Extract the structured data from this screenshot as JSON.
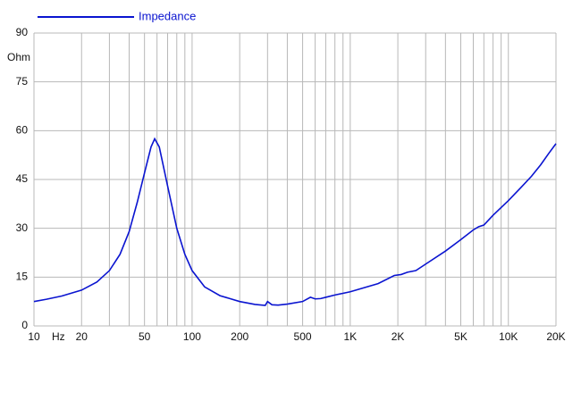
{
  "chart_data": {
    "type": "line",
    "y_unit": "Ohm",
    "x_unit": "Hz",
    "x": [
      10,
      12,
      15,
      20,
      25,
      30,
      35,
      40,
      45,
      50,
      55,
      58,
      62,
      70,
      80,
      90,
      100,
      120,
      150,
      200,
      250,
      290,
      300,
      320,
      350,
      400,
      500,
      560,
      600,
      650,
      700,
      800,
      1000,
      1500,
      1900,
      2100,
      2300,
      2600,
      3000,
      4000,
      5000,
      6000,
      6500,
      7000,
      8000,
      10000,
      12000,
      14000,
      16000,
      18000,
      20000
    ],
    "series": [
      {
        "name": "Impedance",
        "color": "#0a14d0",
        "values": [
          7.5,
          8.2,
          9.2,
          11,
          13.5,
          17,
          22,
          29,
          38,
          47,
          55,
          57.5,
          55,
          43,
          30,
          22,
          17,
          12,
          9.3,
          7.5,
          6.6,
          6.3,
          7.5,
          6.5,
          6.4,
          6.7,
          7.5,
          8.8,
          8.3,
          8.4,
          8.8,
          9.5,
          10.5,
          13,
          15.5,
          15.8,
          16.5,
          17,
          19,
          23,
          26.5,
          29.5,
          30.5,
          31,
          34,
          38.5,
          42.5,
          46,
          49.5,
          53,
          56
        ]
      }
    ],
    "xscale": "log",
    "xlim": [
      10,
      20000
    ],
    "xticks": [
      10,
      20,
      50,
      100,
      200,
      500,
      {
        "value": 1000,
        "label": "1K"
      },
      {
        "value": 2000,
        "label": "2K"
      },
      {
        "value": 5000,
        "label": "5K"
      },
      {
        "value": 10000,
        "label": "10K"
      },
      {
        "value": 20000,
        "label": "20K"
      }
    ],
    "x_minor_grid": [
      30,
      40,
      60,
      70,
      80,
      90,
      300,
      400,
      600,
      700,
      800,
      900,
      3000,
      4000,
      6000,
      7000,
      8000,
      9000
    ],
    "ylim": [
      0,
      90
    ],
    "yticks": [
      0,
      15,
      30,
      45,
      60,
      75,
      90
    ],
    "grid": true
  }
}
